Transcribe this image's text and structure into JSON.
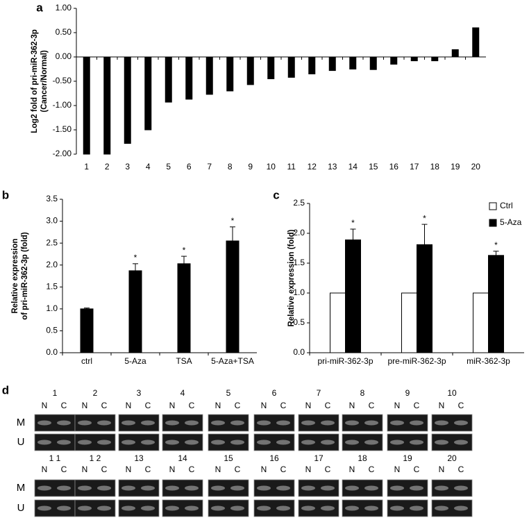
{
  "chart_data": [
    {
      "type": "bar",
      "panel": "a",
      "ylabel": [
        "Log2 fold of pri-miR-362-3p",
        "(Cancer/Normal)"
      ],
      "categories": [
        "1",
        "2",
        "3",
        "4",
        "5",
        "6",
        "7",
        "8",
        "9",
        "10",
        "11",
        "12",
        "13",
        "14",
        "15",
        "16",
        "17",
        "18",
        "19",
        "20"
      ],
      "values": [
        -2.0,
        -2.0,
        -1.78,
        -1.5,
        -0.93,
        -0.87,
        -0.77,
        -0.7,
        -0.57,
        -0.45,
        -0.42,
        -0.35,
        -0.28,
        -0.25,
        -0.26,
        -0.15,
        -0.08,
        -0.08,
        0.15,
        0.6
      ],
      "color": "#000000",
      "ylim": [
        -2.0,
        1.0
      ],
      "yticks": [
        {
          "value": 1,
          "label": "1.00"
        },
        {
          "value": 0.5,
          "label": "0.50"
        },
        {
          "value": 0,
          "label": "0.00"
        },
        {
          "value": -0.5,
          "label": "-0.50"
        },
        {
          "value": -1,
          "label": "-1.00"
        },
        {
          "value": -1.5,
          "label": "-1.50"
        },
        {
          "value": -2,
          "label": "-2.00"
        }
      ],
      "grid": false
    },
    {
      "type": "bar",
      "panel": "b",
      "ylabel": [
        "Relative expression",
        "of pri-miR-362-3p  (fold)"
      ],
      "categories": [
        "ctrl",
        "5-Aza",
        "TSA",
        "5-Aza+TSA"
      ],
      "values": [
        1.0,
        1.87,
        2.03,
        2.55
      ],
      "errors": [
        0.02,
        0.16,
        0.17,
        0.32
      ],
      "significance": [
        null,
        "*",
        "*",
        "*"
      ],
      "color": "#000000",
      "ylim": [
        0,
        3.5
      ],
      "yticks": [
        {
          "value": 0,
          "label": "0.0"
        },
        {
          "value": 0.5,
          "label": "0.5"
        },
        {
          "value": 1,
          "label": "1.0"
        },
        {
          "value": 1.5,
          "label": "1.5"
        },
        {
          "value": 2,
          "label": "2.0"
        },
        {
          "value": 2.5,
          "label": "2.5"
        },
        {
          "value": 3,
          "label": "3.0"
        },
        {
          "value": 3.5,
          "label": "3.5"
        }
      ],
      "grid": false
    },
    {
      "type": "grouped-bar",
      "panel": "c",
      "ylabel": [
        "Relative expression (fold)"
      ],
      "categories": [
        "pri-miR-362-3p",
        "pre-miR-362-3p",
        "miR-362-3p"
      ],
      "series": [
        {
          "name": "Ctrl",
          "color": "#ffffff",
          "values": [
            1,
            1,
            1
          ]
        },
        {
          "name": "5-Aza",
          "color": "#000000",
          "values": [
            1.89,
            1.81,
            1.63
          ],
          "errors": [
            0.18,
            0.34,
            0.07
          ],
          "significance": [
            "*",
            "*",
            "*"
          ]
        }
      ],
      "ylim": [
        0,
        2.5
      ],
      "yticks": [
        {
          "value": 0,
          "label": "0.0"
        },
        {
          "value": 0.5,
          "label": "0.5"
        },
        {
          "value": 1,
          "label": "1.0"
        },
        {
          "value": 1.5,
          "label": "1.5"
        },
        {
          "value": 2,
          "label": "2.0"
        },
        {
          "value": 2.5,
          "label": "2.5"
        }
      ],
      "legend": "top-right",
      "grid": false
    }
  ],
  "gel": {
    "panel": "d",
    "lanes": [
      "1",
      "2",
      "3",
      "4",
      "5",
      "6",
      "7",
      "8",
      "9",
      "10",
      "1 1",
      "1 2",
      "13",
      "14",
      "15",
      "16",
      "17",
      "18",
      "19",
      "20"
    ],
    "columns": [
      "N",
      "C"
    ],
    "rows": [
      "M",
      "U"
    ]
  }
}
